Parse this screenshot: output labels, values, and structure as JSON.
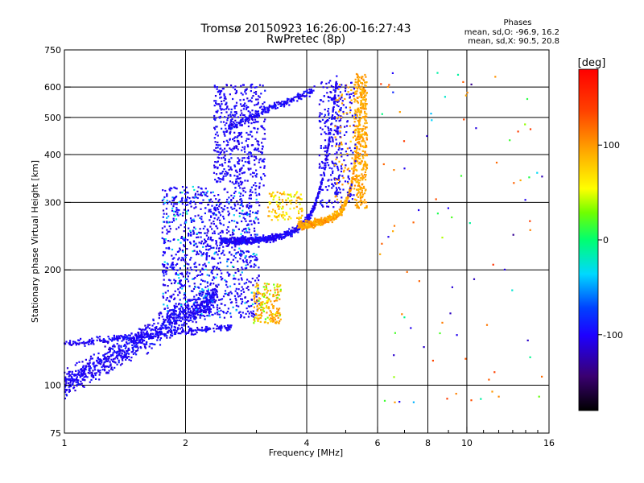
{
  "title": "Tromsø 20150923 16:26:00-16:27:43",
  "subtitle": "RwPretec (8p)",
  "phases_box": {
    "heading": "Phases",
    "line_o": "mean, sd,O: -96.9, 16.2",
    "line_x": "mean, sd,X:  90.5, 20.8"
  },
  "colorbar": {
    "unit": "[deg]",
    "range": [
      -180,
      180
    ],
    "tick_values": [
      100,
      0,
      -100
    ],
    "tick_labels": [
      "100",
      "0",
      "-100"
    ]
  },
  "chart_data": {
    "type": "scatter",
    "xlabel": "Frequency [MHz]",
    "ylabel": "Stationary phase Virtual Height [km]",
    "x_scale": "log",
    "y_scale": "log",
    "xlim": [
      1,
      16
    ],
    "ylim": [
      75,
      750
    ],
    "x_ticks": [
      1,
      2,
      4,
      6,
      8,
      10,
      16
    ],
    "x_tick_labels": [
      "1",
      "2",
      "4",
      "6",
      "8",
      "10",
      "16"
    ],
    "x_minor_ticks": [
      3,
      5,
      7,
      9,
      11,
      12,
      13,
      14,
      15
    ],
    "y_ticks": [
      75,
      100,
      200,
      300,
      400,
      500,
      600,
      750
    ],
    "y_tick_labels": [
      "75",
      "100",
      "200",
      "300",
      "400",
      "500",
      "600",
      "750"
    ],
    "grid": true,
    "color_by": "phase",
    "clusters": [
      {
        "name": "E / lower F trace",
        "freq_range_mhz": [
          1.0,
          2.5
        ],
        "height_range_km": [
          95,
          200
        ],
        "typical_phase_deg": -100
      },
      {
        "name": "F1 region",
        "freq_range_mhz": [
          1.8,
          3.0
        ],
        "height_range_km": [
          140,
          330
        ],
        "typical_phase_deg": -100
      },
      {
        "name": "green-yellow patch",
        "freq_range_mhz": [
          2.95,
          3.4
        ],
        "height_range_km": [
          145,
          185
        ],
        "typical_phase_deg": 100
      },
      {
        "name": "F2 O-mode trace",
        "freq_range_mhz": [
          2.5,
          5.0
        ],
        "height_range_km": [
          240,
          630
        ],
        "typical_phase_deg": -100
      },
      {
        "name": "F2 X-mode trace",
        "freq_range_mhz": [
          3.8,
          5.6
        ],
        "height_range_km": [
          260,
          650
        ],
        "typical_phase_deg": 95
      },
      {
        "name": "upper echoes",
        "freq_range_mhz": [
          2.3,
          3.2
        ],
        "height_range_km": [
          330,
          600
        ],
        "typical_phase_deg": -100
      },
      {
        "name": "scattered high-frequency echoes",
        "freq_range_mhz": [
          5.8,
          15.5
        ],
        "height_range_km": [
          90,
          650
        ],
        "typical_phase_deg": 50
      }
    ],
    "sample_points": [
      {
        "x": 1.02,
        "y": 98,
        "phase": -110
      },
      {
        "x": 1.1,
        "y": 108,
        "phase": -100
      },
      {
        "x": 1.2,
        "y": 118,
        "phase": -95
      },
      {
        "x": 1.3,
        "y": 125,
        "phase": -105
      },
      {
        "x": 1.4,
        "y": 135,
        "phase": -100
      },
      {
        "x": 1.6,
        "y": 150,
        "phase": -95
      },
      {
        "x": 1.8,
        "y": 165,
        "phase": -100
      },
      {
        "x": 2.0,
        "y": 185,
        "phase": -105
      },
      {
        "x": 2.2,
        "y": 230,
        "phase": -100
      },
      {
        "x": 2.5,
        "y": 240,
        "phase": -110
      },
      {
        "x": 3.0,
        "y": 255,
        "phase": -100
      },
      {
        "x": 3.5,
        "y": 275,
        "phase": -95
      },
      {
        "x": 4.0,
        "y": 310,
        "phase": -100
      },
      {
        "x": 4.4,
        "y": 400,
        "phase": -105
      },
      {
        "x": 4.6,
        "y": 600,
        "phase": -110
      },
      {
        "x": 4.8,
        "y": 300,
        "phase": 90
      },
      {
        "x": 5.3,
        "y": 380,
        "phase": 100
      },
      {
        "x": 5.5,
        "y": 500,
        "phase": 95
      },
      {
        "x": 5.6,
        "y": 620,
        "phase": 110
      },
      {
        "x": 3.1,
        "y": 160,
        "phase": 100
      },
      {
        "x": 3.2,
        "y": 150,
        "phase": 110
      },
      {
        "x": 7.0,
        "y": 500,
        "phase": 130
      },
      {
        "x": 9.0,
        "y": 600,
        "phase": -120
      },
      {
        "x": 10.5,
        "y": 450,
        "phase": 150
      },
      {
        "x": 13.0,
        "y": 640,
        "phase": 10
      },
      {
        "x": 14.5,
        "y": 100,
        "phase": 30
      }
    ]
  }
}
